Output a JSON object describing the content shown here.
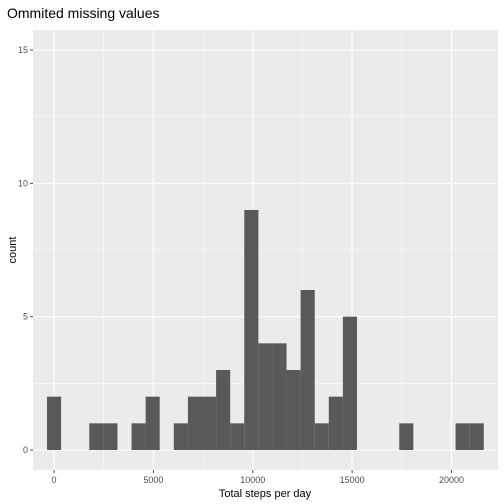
{
  "chart_data": {
    "type": "bar",
    "title": "Ommited missing values",
    "xlabel": "Total steps per day",
    "ylabel": "count",
    "xlim": [
      -1060,
      22340
    ],
    "ylim": [
      -0.75,
      15.75
    ],
    "x_ticks": [
      0,
      5000,
      10000,
      15000,
      20000
    ],
    "x_tick_labels": [
      "0",
      "5000",
      "10000",
      "15000",
      "20000"
    ],
    "y_ticks": [
      0,
      5,
      10,
      15
    ],
    "y_tick_labels": [
      "0",
      "5",
      "10",
      "15"
    ],
    "grid": true,
    "bin_width": 709,
    "bin_centers": [
      0,
      709,
      1418,
      2127,
      2836,
      3545,
      4254,
      4963,
      5672,
      6381,
      7090,
      7799,
      8508,
      9217,
      9926,
      10635,
      11344,
      12053,
      12762,
      13471,
      14180,
      14889,
      15598,
      16307,
      17016,
      17725,
      18434,
      19143,
      19852,
      20561,
      21270
    ],
    "values": [
      2,
      0,
      0,
      1,
      1,
      0,
      1,
      2,
      0,
      1,
      2,
      2,
      3,
      1,
      9,
      4,
      4,
      3,
      6,
      1,
      2,
      5,
      0,
      0,
      0,
      1,
      0,
      0,
      0,
      1,
      1
    ],
    "colors": {
      "panel": "#ebebeb",
      "grid_major": "#ffffff",
      "bar": "#595959",
      "tick": "#4d4d4d"
    }
  }
}
